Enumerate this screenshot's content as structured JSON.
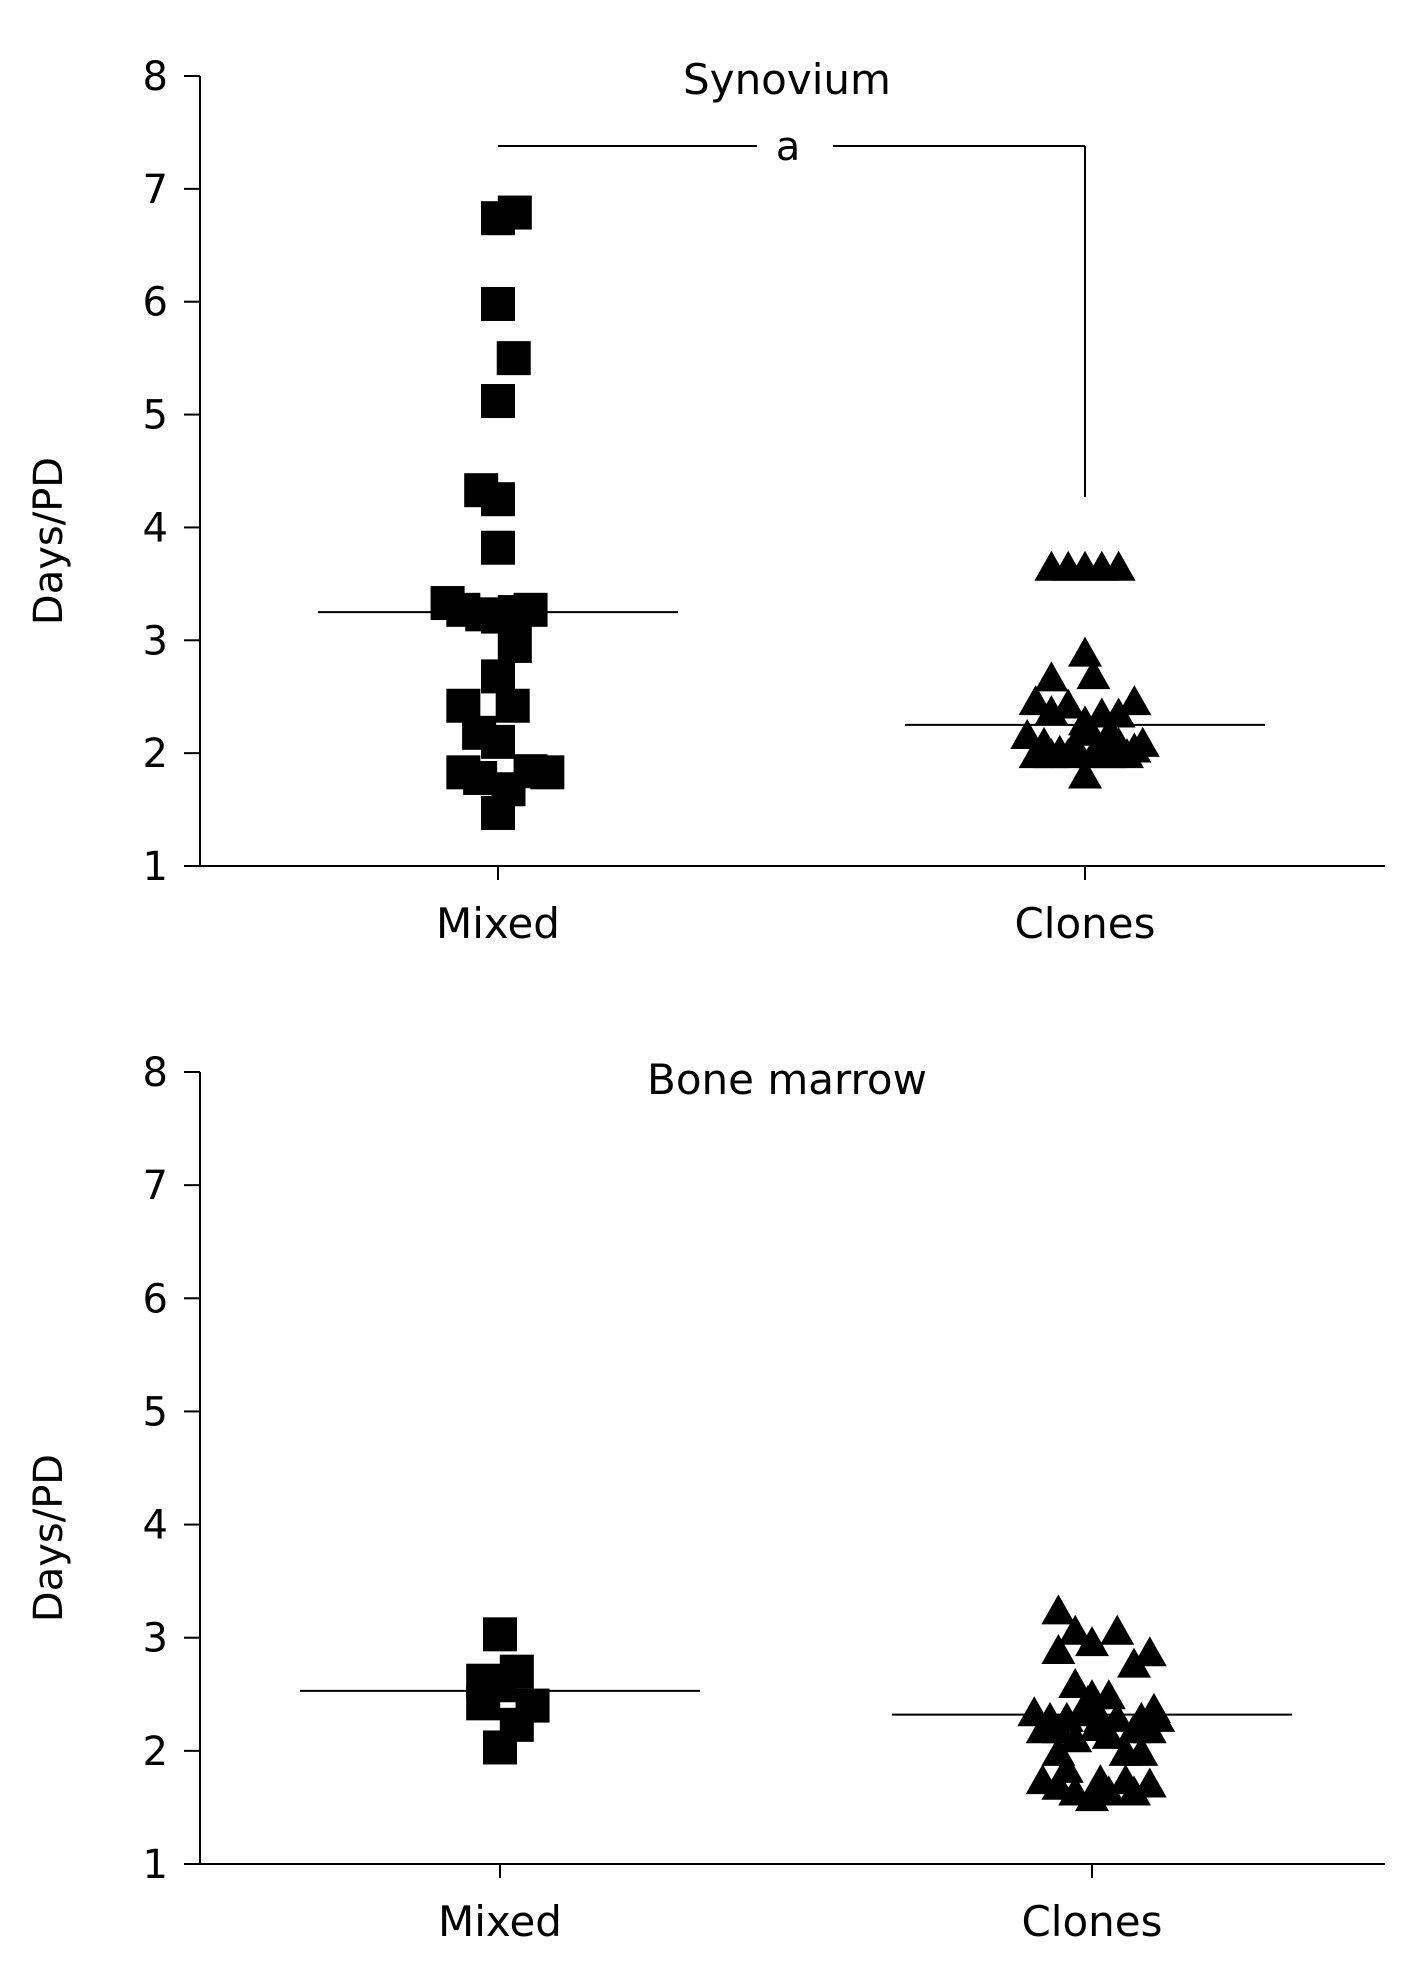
{
  "chart_data": [
    {
      "type": "scatter",
      "title": "Synovium",
      "ylabel": "Days/PD",
      "xlabel": "",
      "ylim": [
        1,
        8
      ],
      "yticks": [
        1,
        2,
        3,
        4,
        5,
        6,
        7,
        8
      ],
      "categories": [
        "Mixed",
        "Clones"
      ],
      "significance": {
        "label": "a",
        "between": [
          "Mixed",
          "Clones"
        ]
      },
      "series": [
        {
          "category": "Mixed",
          "marker": "square",
          "median": 3.25,
          "points": [
            {
              "x": 0.0,
              "y": 1.47
            },
            {
              "x": -0.17,
              "y": 1.78
            },
            {
              "x": 0.1,
              "y": 1.68
            },
            {
              "x": -0.33,
              "y": 1.83
            },
            {
              "x": 0.31,
              "y": 1.84
            },
            {
              "x": 0.47,
              "y": 1.83
            },
            {
              "x": -0.18,
              "y": 2.18
            },
            {
              "x": 0.0,
              "y": 2.1
            },
            {
              "x": -0.33,
              "y": 2.42
            },
            {
              "x": 0.14,
              "y": 2.42
            },
            {
              "x": 0.0,
              "y": 2.68
            },
            {
              "x": 0.16,
              "y": 2.95
            },
            {
              "x": -0.48,
              "y": 3.33
            },
            {
              "x": -0.33,
              "y": 3.27
            },
            {
              "x": -0.15,
              "y": 3.23
            },
            {
              "x": 0.0,
              "y": 3.21
            },
            {
              "x": 0.16,
              "y": 3.25
            },
            {
              "x": 0.31,
              "y": 3.27
            },
            {
              "x": 0.0,
              "y": 3.82
            },
            {
              "x": -0.16,
              "y": 4.33
            },
            {
              "x": 0.0,
              "y": 4.25
            },
            {
              "x": 0.0,
              "y": 5.12
            },
            {
              "x": 0.15,
              "y": 5.5
            },
            {
              "x": 0.0,
              "y": 5.98
            },
            {
              "x": 0.0,
              "y": 6.74
            },
            {
              "x": 0.16,
              "y": 6.79
            }
          ]
        },
        {
          "category": "Clones",
          "marker": "triangle",
          "median": 2.25,
          "points": [
            {
              "x": -0.55,
              "y": 2.17
            },
            {
              "x": -0.47,
              "y": 2.0
            },
            {
              "x": -0.47,
              "y": 2.47
            },
            {
              "x": -0.39,
              "y": 2.1
            },
            {
              "x": -0.32,
              "y": 2.0
            },
            {
              "x": -0.32,
              "y": 2.38
            },
            {
              "x": -0.32,
              "y": 2.68
            },
            {
              "x": -0.24,
              "y": 2.03
            },
            {
              "x": -0.16,
              "y": 2.0
            },
            {
              "x": -0.16,
              "y": 2.44
            },
            {
              "x": -0.08,
              "y": 2.05
            },
            {
              "x": -0.03,
              "y": 2.2
            },
            {
              "x": 0.0,
              "y": 1.82
            },
            {
              "x": 0.0,
              "y": 2.29
            },
            {
              "x": 0.0,
              "y": 2.9
            },
            {
              "x": 0.04,
              "y": 2.2
            },
            {
              "x": 0.08,
              "y": 2.7
            },
            {
              "x": 0.08,
              "y": 2.0
            },
            {
              "x": 0.16,
              "y": 2.06
            },
            {
              "x": 0.16,
              "y": 2.36
            },
            {
              "x": 0.24,
              "y": 2.0
            },
            {
              "x": 0.24,
              "y": 2.2
            },
            {
              "x": 0.32,
              "y": 2.1
            },
            {
              "x": 0.32,
              "y": 2.36
            },
            {
              "x": 0.4,
              "y": 2.0
            },
            {
              "x": 0.47,
              "y": 2.05
            },
            {
              "x": 0.47,
              "y": 2.47
            },
            {
              "x": 0.55,
              "y": 2.1
            },
            {
              "x": -0.32,
              "y": 3.66
            },
            {
              "x": -0.16,
              "y": 3.66
            },
            {
              "x": 0.0,
              "y": 3.66
            },
            {
              "x": 0.16,
              "y": 3.66
            },
            {
              "x": 0.32,
              "y": 3.66
            }
          ]
        }
      ]
    },
    {
      "type": "scatter",
      "title": "Bone marrow",
      "ylabel": "Days/PD",
      "xlabel": "",
      "ylim": [
        1,
        8
      ],
      "yticks": [
        1,
        2,
        3,
        4,
        5,
        6,
        7,
        8
      ],
      "categories": [
        "Mixed",
        "Clones"
      ],
      "series": [
        {
          "category": "Mixed",
          "marker": "square",
          "median": 2.53,
          "points": [
            {
              "x": 0.0,
              "y": 2.03
            },
            {
              "x": 0.16,
              "y": 2.23
            },
            {
              "x": 0.31,
              "y": 2.4
            },
            {
              "x": -0.16,
              "y": 2.42
            },
            {
              "x": -0.16,
              "y": 2.62
            },
            {
              "x": 0.0,
              "y": 2.58
            },
            {
              "x": 0.16,
              "y": 2.7
            },
            {
              "x": 0.0,
              "y": 3.03
            }
          ]
        },
        {
          "category": "Clones",
          "marker": "triangle",
          "median": 2.32,
          "points": [
            {
              "x": -0.55,
              "y": 2.35
            },
            {
              "x": -0.47,
              "y": 2.2
            },
            {
              "x": -0.47,
              "y": 1.75
            },
            {
              "x": -0.4,
              "y": 2.3
            },
            {
              "x": -0.32,
              "y": 2.0
            },
            {
              "x": -0.32,
              "y": 2.2
            },
            {
              "x": -0.32,
              "y": 1.7
            },
            {
              "x": -0.32,
              "y": 2.9
            },
            {
              "x": -0.32,
              "y": 3.25
            },
            {
              "x": -0.24,
              "y": 2.3
            },
            {
              "x": -0.24,
              "y": 1.85
            },
            {
              "x": -0.16,
              "y": 2.12
            },
            {
              "x": -0.16,
              "y": 3.07
            },
            {
              "x": -0.16,
              "y": 2.6
            },
            {
              "x": -0.16,
              "y": 1.65
            },
            {
              "x": -0.08,
              "y": 2.35
            },
            {
              "x": -0.04,
              "y": 2.45
            },
            {
              "x": 0.0,
              "y": 2.97
            },
            {
              "x": 0.0,
              "y": 2.5
            },
            {
              "x": 0.0,
              "y": 1.6
            },
            {
              "x": 0.04,
              "y": 2.22
            },
            {
              "x": 0.08,
              "y": 2.3
            },
            {
              "x": 0.08,
              "y": 1.75
            },
            {
              "x": 0.16,
              "y": 2.15
            },
            {
              "x": 0.16,
              "y": 2.5
            },
            {
              "x": 0.16,
              "y": 1.65
            },
            {
              "x": 0.24,
              "y": 2.3
            },
            {
              "x": 0.24,
              "y": 3.07
            },
            {
              "x": 0.32,
              "y": 2.0
            },
            {
              "x": 0.32,
              "y": 1.75
            },
            {
              "x": 0.4,
              "y": 2.2
            },
            {
              "x": 0.4,
              "y": 2.78
            },
            {
              "x": 0.4,
              "y": 1.65
            },
            {
              "x": 0.47,
              "y": 2.3
            },
            {
              "x": 0.47,
              "y": 2.0
            },
            {
              "x": 0.55,
              "y": 2.2
            },
            {
              "x": 0.55,
              "y": 2.88
            },
            {
              "x": 0.55,
              "y": 1.72
            },
            {
              "x": 0.59,
              "y": 2.38
            },
            {
              "x": 0.63,
              "y": 2.3
            }
          ]
        }
      ]
    }
  ]
}
